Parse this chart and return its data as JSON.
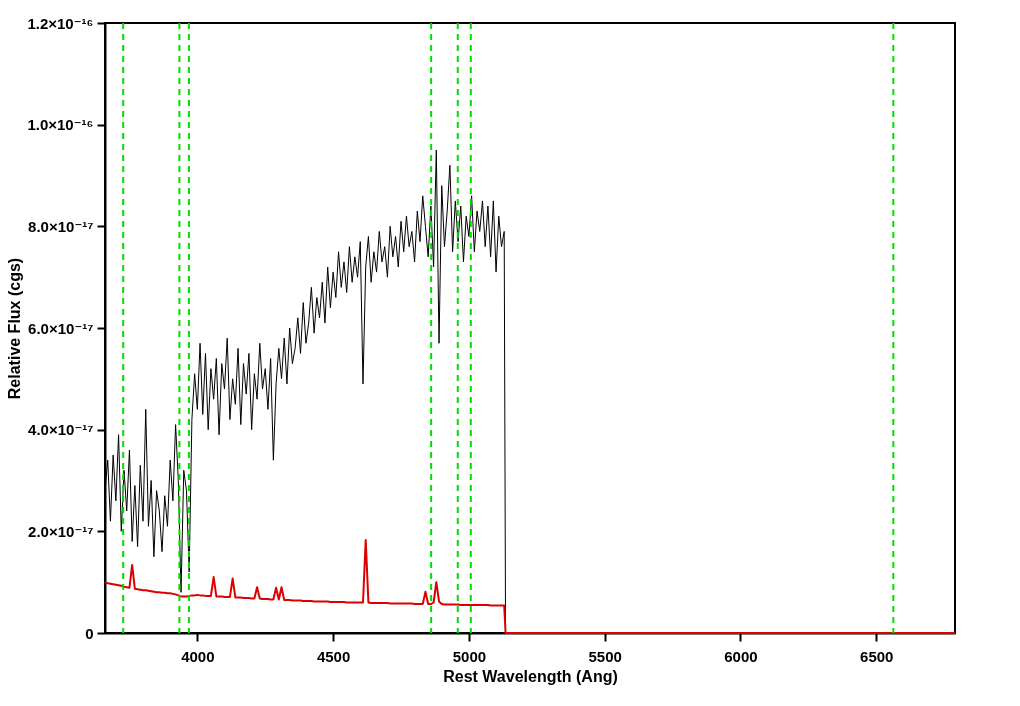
{
  "chart_data": {
    "type": "line",
    "xlabel": "Rest Wavelength (Ang)",
    "ylabel": "Relative Flux (cgs)",
    "x": [
      3660,
      3670,
      3680,
      3690,
      3700,
      3710,
      3720,
      3730,
      3740,
      3750,
      3760,
      3770,
      3780,
      3790,
      3800,
      3810,
      3820,
      3830,
      3840,
      3850,
      3860,
      3870,
      3880,
      3890,
      3900,
      3910,
      3920,
      3930,
      3940,
      3950,
      3960,
      3970,
      3980,
      3990,
      4000,
      4010,
      4020,
      4030,
      4040,
      4050,
      4060,
      4070,
      4080,
      4090,
      4100,
      4110,
      4120,
      4130,
      4140,
      4150,
      4160,
      4170,
      4180,
      4190,
      4200,
      4210,
      4220,
      4230,
      4240,
      4250,
      4260,
      4270,
      4280,
      4290,
      4300,
      4310,
      4320,
      4330,
      4340,
      4350,
      4360,
      4370,
      4380,
      4390,
      4400,
      4410,
      4420,
      4430,
      4440,
      4450,
      4460,
      4470,
      4480,
      4490,
      4500,
      4510,
      4520,
      4530,
      4540,
      4550,
      4560,
      4570,
      4580,
      4590,
      4600,
      4610,
      4620,
      4630,
      4640,
      4650,
      4660,
      4670,
      4680,
      4690,
      4700,
      4710,
      4720,
      4730,
      4740,
      4750,
      4760,
      4770,
      4780,
      4790,
      4800,
      4810,
      4820,
      4830,
      4840,
      4850,
      4860,
      4870,
      4880,
      4890,
      4900,
      4910,
      4920,
      4930,
      4940,
      4950,
      4960,
      4970,
      4980,
      4990,
      5000,
      5010,
      5020,
      5030,
      5040,
      5050,
      5060,
      5070,
      5080,
      5090,
      5100,
      5110,
      5120,
      5130,
      5135,
      6790
    ],
    "series": [
      {
        "color": "#000000",
        "values": [
          2.8e-17,
          3.4e-17,
          2.2e-17,
          3.5e-17,
          2.6e-17,
          3.9e-17,
          2e-17,
          3.2e-17,
          2.4e-17,
          3.6e-17,
          1.8e-17,
          2.9e-17,
          1.7e-17,
          3.3e-17,
          2.2e-17,
          4.4e-17,
          2.1e-17,
          3e-17,
          1.5e-17,
          2.8e-17,
          2.4e-17,
          1.6e-17,
          2.7e-17,
          2.1e-17,
          3.4e-17,
          2.6e-17,
          4.1e-17,
          3e-17,
          8e-18,
          3.2e-17,
          2.8e-17,
          1.2e-17,
          4.2e-17,
          5.1e-17,
          4.4e-17,
          5.7e-17,
          4.3e-17,
          5.5e-17,
          4e-17,
          5.2e-17,
          4.6e-17,
          5.4e-17,
          3.9e-17,
          5.3e-17,
          4.8e-17,
          5.8e-17,
          4.2e-17,
          5e-17,
          4.5e-17,
          5.6e-17,
          4.1e-17,
          5.3e-17,
          4.7e-17,
          5.5e-17,
          4e-17,
          5.1e-17,
          4.6e-17,
          5.7e-17,
          4.8e-17,
          5.2e-17,
          4.4e-17,
          5.4e-17,
          3.4e-17,
          4.9e-17,
          5.6e-17,
          5e-17,
          5.8e-17,
          4.9e-17,
          6e-17,
          5.3e-17,
          5.6e-17,
          6.2e-17,
          5.5e-17,
          6.5e-17,
          5.7e-17,
          6.1e-17,
          6.8e-17,
          5.9e-17,
          6.6e-17,
          6.2e-17,
          6.9e-17,
          6.1e-17,
          7.2e-17,
          6.4e-17,
          7.1e-17,
          6.6e-17,
          7.5e-17,
          6.8e-17,
          7.3e-17,
          6.7e-17,
          7.6e-17,
          6.9e-17,
          7.4e-17,
          7e-17,
          7.7e-17,
          4.9e-17,
          7.2e-17,
          7.8e-17,
          6.9e-17,
          7.5e-17,
          7.1e-17,
          7.9e-17,
          7.3e-17,
          7.6e-17,
          7e-17,
          8e-17,
          7.4e-17,
          7.8e-17,
          7.2e-17,
          8.1e-17,
          7.5e-17,
          8.2e-17,
          7.6e-17,
          7.9e-17,
          7.3e-17,
          8.3e-17,
          7.7e-17,
          8.6e-17,
          8e-17,
          7.4e-17,
          8.4e-17,
          7.2e-17,
          9.5e-17,
          5.7e-17,
          8.8e-17,
          7.6e-17,
          8.3e-17,
          9.2e-17,
          7.5e-17,
          8.5e-17,
          7.7e-17,
          8.4e-17,
          7.3e-17,
          8.2e-17,
          7.8e-17,
          8.6e-17,
          7.5e-17,
          8.3e-17,
          7.9e-17,
          8.5e-17,
          7.6e-17,
          8.4e-17,
          7.4e-17,
          8.5e-17,
          7.1e-17,
          8.2e-17,
          7.6e-17,
          7.9e-17,
          0,
          null
        ]
      },
      {
        "color": "#dd0000",
        "values": [
          1e-17,
          9.8e-18,
          9.7e-18,
          9.6e-18,
          9.5e-18,
          9.4e-18,
          9.3e-18,
          9.1e-18,
          9e-18,
          8.9e-18,
          1.34e-17,
          8.7e-18,
          8.6e-18,
          8.5e-18,
          8.4e-18,
          8.4e-18,
          8.3e-18,
          8.2e-18,
          8.1e-18,
          8e-18,
          8e-18,
          7.9e-18,
          7.9e-18,
          7.8e-18,
          7.8e-18,
          7.7e-18,
          7.6e-18,
          7.4e-18,
          7.2e-18,
          7.2e-18,
          7.2e-18,
          7.3e-18,
          7.4e-18,
          7.4e-18,
          7.5e-18,
          7.4e-18,
          7.4e-18,
          7.3e-18,
          7.3e-18,
          7.3e-18,
          1.1e-17,
          7.2e-18,
          7.2e-18,
          7.2e-18,
          7.1e-18,
          7.1e-18,
          7.1e-18,
          1.07e-17,
          7e-18,
          7e-18,
          7e-18,
          6.9e-18,
          6.9e-18,
          6.9e-18,
          6.8e-18,
          6.8e-18,
          9e-18,
          6.8e-18,
          6.7e-18,
          6.7e-18,
          6.7e-18,
          6.6e-18,
          6.6e-18,
          8.9e-18,
          6.6e-18,
          9e-18,
          6.5e-18,
          6.5e-18,
          6.5e-18,
          6.4e-18,
          6.4e-18,
          6.4e-18,
          6.4e-18,
          6.3e-18,
          6.3e-18,
          6.3e-18,
          6.3e-18,
          6.2e-18,
          6.2e-18,
          6.2e-18,
          6.2e-18,
          6.2e-18,
          6.2e-18,
          6.1e-18,
          6.1e-18,
          6.1e-18,
          6.1e-18,
          6.1e-18,
          6.1e-18,
          6e-18,
          6e-18,
          6e-18,
          6e-18,
          6e-18,
          6e-18,
          6e-18,
          1.83e-17,
          6e-18,
          5.9e-18,
          5.9e-18,
          5.9e-18,
          5.9e-18,
          5.9e-18,
          5.9e-18,
          5.9e-18,
          5.8e-18,
          5.8e-18,
          5.8e-18,
          5.8e-18,
          5.8e-18,
          5.8e-18,
          5.8e-18,
          5.8e-18,
          5.8e-18,
          5.7e-18,
          5.7e-18,
          5.7e-18,
          5.7e-18,
          8.1e-18,
          5.7e-18,
          5.7e-18,
          6e-18,
          1e-17,
          6.2e-18,
          5.7e-18,
          5.6e-18,
          5.6e-18,
          5.6e-18,
          5.6e-18,
          5.6e-18,
          5.6e-18,
          5.5e-18,
          5.5e-18,
          5.5e-18,
          5.5e-18,
          5.5e-18,
          5.5e-18,
          5.5e-18,
          5.5e-18,
          5.5e-18,
          5.5e-18,
          5.5e-18,
          5.4e-18,
          5.4e-18,
          5.4e-18,
          5.4e-18,
          5.4e-18,
          5.4e-18,
          0,
          0
        ]
      }
    ],
    "xlim": [
      3660,
      6790
    ],
    "xticks": [
      4000,
      4500,
      5000,
      5500,
      6000,
      6500
    ],
    "ylim": [
      0,
      1.2e-16
    ],
    "yticks": [
      0,
      {
        "value": 2e-17,
        "label": "2.0×10⁻¹⁷"
      },
      {
        "value": 4e-17,
        "label": "4.0×10⁻¹⁷"
      },
      {
        "value": 6e-17,
        "label": "6.0×10⁻¹⁷"
      },
      {
        "value": 8e-17,
        "label": "8.0×10⁻¹⁷"
      },
      {
        "value": 1e-16,
        "label": "1.0×10⁻¹⁶"
      },
      {
        "value": 1.2e-16,
        "label": "1.2×10⁻¹⁶"
      }
    ],
    "ref_lines": [
      {
        "axis": "x",
        "value": 3727,
        "color": "#00dd00",
        "line_style": "dashed"
      },
      {
        "axis": "x",
        "value": 3934,
        "color": "#00dd00",
        "line_style": "dashed"
      },
      {
        "axis": "x",
        "value": 3969,
        "color": "#00dd00",
        "line_style": "dashed"
      },
      {
        "axis": "x",
        "value": 4861,
        "color": "#00dd00",
        "line_style": "dashed"
      },
      {
        "axis": "x",
        "value": 4959,
        "color": "#00dd00",
        "line_style": "dashed"
      },
      {
        "axis": "x",
        "value": 5007,
        "color": "#00dd00",
        "line_style": "dashed"
      },
      {
        "axis": "x",
        "value": 6563,
        "color": "#00dd00",
        "line_style": "dashed"
      }
    ],
    "grid": false,
    "marker": "none",
    "line_style": "solid"
  }
}
